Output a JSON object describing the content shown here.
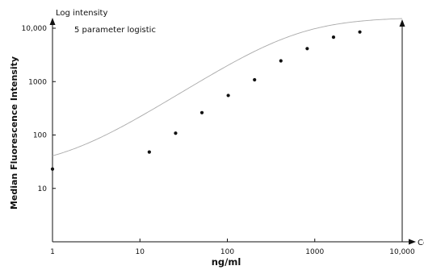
{
  "chart_data": {
    "type": "scatter",
    "y_axis_corner_label": "Log intensity",
    "x_axis_corner_label": "Concentration",
    "annotation": "5 parameter logistic",
    "xlabel": "ng/ml",
    "ylabel": "Median Fluorescence Intensity",
    "x_scale": "log",
    "y_scale": "log",
    "xlim": [
      1,
      10000
    ],
    "ylim": [
      1,
      10000
    ],
    "x_ticks": [
      1,
      10,
      100,
      1000,
      10000
    ],
    "x_tick_labels": [
      "1",
      "10",
      "100",
      "1000",
      "10,000"
    ],
    "y_ticks": [
      10,
      100,
      1000,
      10000
    ],
    "y_tick_labels": [
      "10",
      "100",
      "1000",
      "10,000"
    ],
    "grid": false,
    "points": [
      {
        "x": 1,
        "y": 23
      },
      {
        "x": 12.8,
        "y": 48
      },
      {
        "x": 25.6,
        "y": 108
      },
      {
        "x": 51.2,
        "y": 262
      },
      {
        "x": 102.4,
        "y": 550
      },
      {
        "x": 204.8,
        "y": 1080
      },
      {
        "x": 409.6,
        "y": 2450
      },
      {
        "x": 819.2,
        "y": 4150
      },
      {
        "x": 1638.4,
        "y": 6800
      },
      {
        "x": 3276.8,
        "y": 8500
      }
    ],
    "fit_curve": {
      "model": "5PL",
      "bottom": 23,
      "top": 16000,
      "c": 650,
      "b": 1.05,
      "g": 1
    },
    "colors": {
      "axis": "#111111",
      "points": "#111111",
      "curve": "#aaaaaa"
    }
  }
}
